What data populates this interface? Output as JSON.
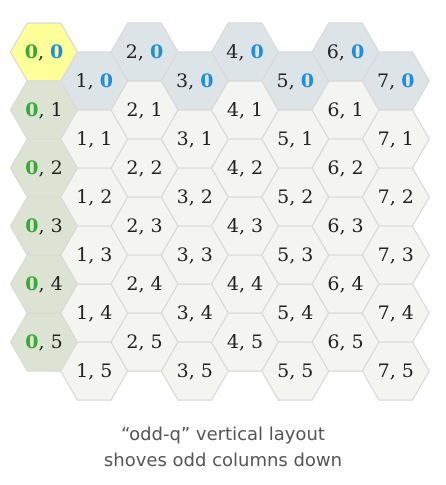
{
  "diagram": {
    "columns": 8,
    "rows": 6,
    "separator": ", ",
    "colors": {
      "default_fill": "#f4f4f0",
      "row_header_fill": "#dce3d2",
      "col_header_fill": "#dde4e8",
      "origin_fill": "#ffff99",
      "default_text": "#222222",
      "col_digit_header": "#39a83a",
      "row_digit_header": "#1f8fd6"
    }
  },
  "caption": {
    "line1": "“odd-q” vertical layout",
    "line2": "shoves odd columns down"
  }
}
